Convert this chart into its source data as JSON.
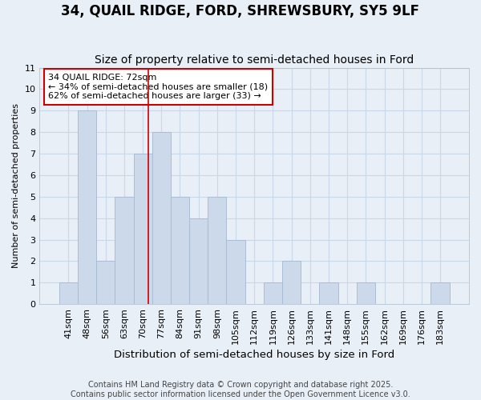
{
  "title": "34, QUAIL RIDGE, FORD, SHREWSBURY, SY5 9LF",
  "subtitle": "Size of property relative to semi-detached houses in Ford",
  "xlabel": "Distribution of semi-detached houses by size in Ford",
  "ylabel": "Number of semi-detached properties",
  "categories": [
    "41sqm",
    "48sqm",
    "56sqm",
    "63sqm",
    "70sqm",
    "77sqm",
    "84sqm",
    "91sqm",
    "98sqm",
    "105sqm",
    "112sqm",
    "119sqm",
    "126sqm",
    "133sqm",
    "141sqm",
    "148sqm",
    "155sqm",
    "162sqm",
    "169sqm",
    "176sqm",
    "183sqm"
  ],
  "values": [
    1,
    9,
    2,
    5,
    7,
    8,
    5,
    4,
    5,
    3,
    0,
    1,
    2,
    0,
    1,
    0,
    1,
    0,
    0,
    0,
    1
  ],
  "bar_color": "#ccd9ea",
  "bar_edge_color": "#aabdd4",
  "vline_color": "#cc0000",
  "vline_x": 4.29,
  "annotation_title": "34 QUAIL RIDGE: 72sqm",
  "annotation_line1": "← 34% of semi-detached houses are smaller (18)",
  "annotation_line2": "62% of semi-detached houses are larger (33) →",
  "annotation_box_facecolor": "#ffffff",
  "annotation_box_edgecolor": "#cc0000",
  "ylim": [
    0,
    11
  ],
  "yticks": [
    0,
    1,
    2,
    3,
    4,
    5,
    6,
    7,
    8,
    9,
    10,
    11
  ],
  "grid_color": "#c8d8e8",
  "bg_color": "#e8eff7",
  "plot_bg_color": "#e8eff7",
  "footer_line1": "Contains HM Land Registry data © Crown copyright and database right 2025.",
  "footer_line2": "Contains public sector information licensed under the Open Government Licence v3.0.",
  "title_fontsize": 12,
  "subtitle_fontsize": 10,
  "xlabel_fontsize": 9.5,
  "ylabel_fontsize": 8,
  "tick_fontsize": 8,
  "annotation_fontsize": 8,
  "footer_fontsize": 7
}
